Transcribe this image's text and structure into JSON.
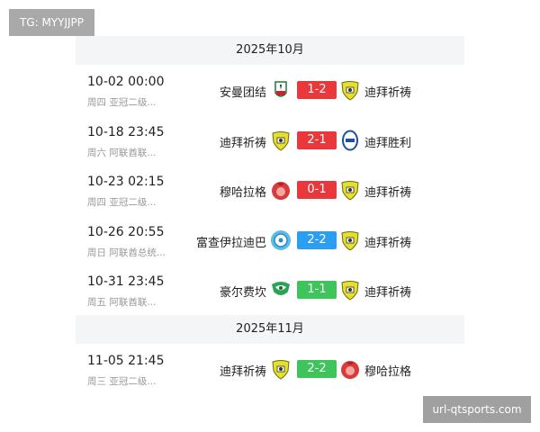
{
  "watermarks": {
    "top_left": "TG: MYYJJPP",
    "bottom_right": "url-qtsports.com"
  },
  "colors": {
    "loss": "#e8383b",
    "draw_blue": "#2a9ef0",
    "draw_green": "#3ec45b"
  },
  "sections": [
    {
      "month": "2025年10月",
      "matches": [
        {
          "time": "10-02 00:00",
          "sub": "周四 亚冠二级...",
          "home": "安曼团结",
          "home_logo": "amman-united-crest-icon",
          "score": "1-2",
          "score_color": "#e8383b",
          "away": "迪拜祈祷",
          "away_logo": "al-wasl-crest-icon"
        },
        {
          "time": "10-18 23:45",
          "sub": "周六 阿联酋联...",
          "home": "迪拜祈祷",
          "home_logo": "al-wasl-crest-icon",
          "score": "2-1",
          "score_color": "#e8383b",
          "away": "迪拜胜利",
          "away_logo": "dubai-victory-crest-icon"
        },
        {
          "time": "10-23 02:15",
          "sub": "周四 亚冠二级...",
          "home": "穆哈拉格",
          "home_logo": "muharraq-crest-icon",
          "score": "0-1",
          "score_color": "#e8383b",
          "away": "迪拜祈祷",
          "away_logo": "al-wasl-crest-icon"
        },
        {
          "time": "10-26 20:55",
          "sub": "周日 阿联酋总统...",
          "home": "富查伊拉迪巴",
          "home_logo": "dibba-crest-icon",
          "score": "2-2",
          "score_color": "#2a9ef0",
          "away": "迪拜祈祷",
          "away_logo": "al-wasl-crest-icon"
        },
        {
          "time": "10-31 23:45",
          "sub": "周五 阿联酋联...",
          "home": "豪尔费坎",
          "home_logo": "khor-fakkan-crest-icon",
          "score": "1-1",
          "score_color": "#3ec45b",
          "away": "迪拜祈祷",
          "away_logo": "al-wasl-crest-icon"
        }
      ]
    },
    {
      "month": "2025年11月",
      "matches": [
        {
          "time": "11-05 21:45",
          "sub": "周三 亚冠二级...",
          "home": "迪拜祈祷",
          "home_logo": "al-wasl-crest-icon",
          "score": "2-2",
          "score_color": "#3ec45b",
          "away": "穆哈拉格",
          "away_logo": "muharraq-crest-icon"
        }
      ]
    }
  ]
}
